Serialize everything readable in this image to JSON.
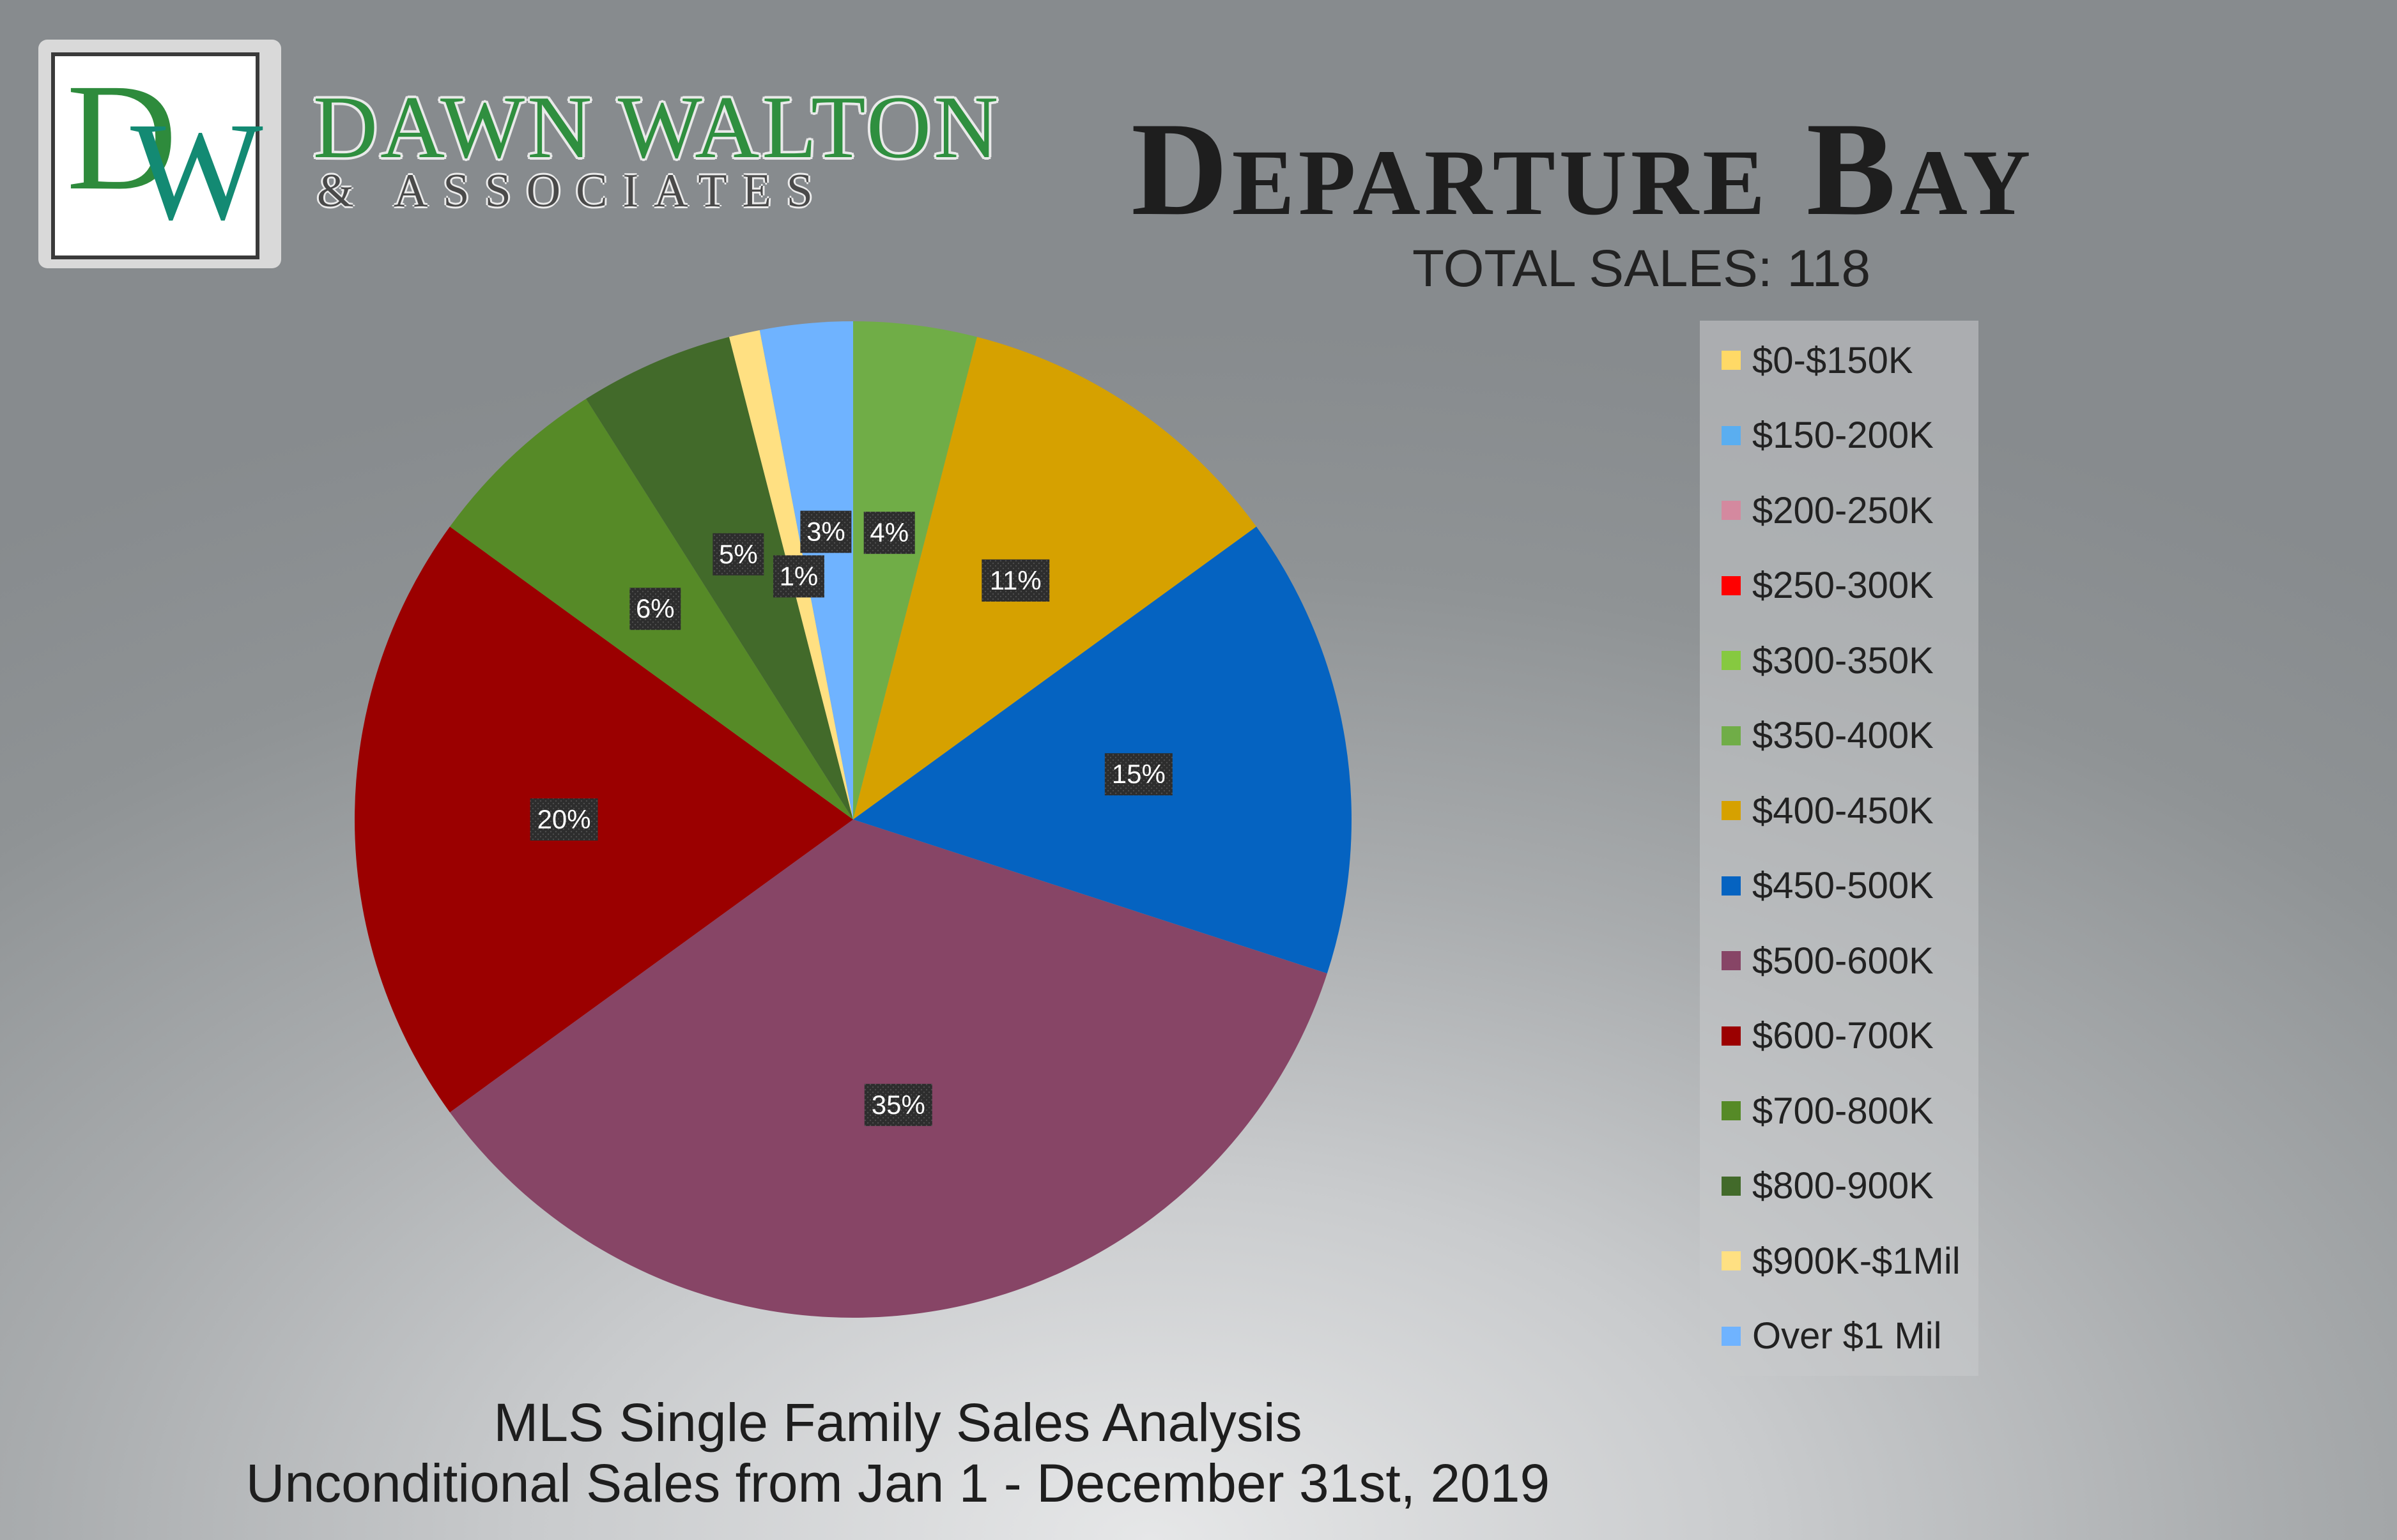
{
  "brand": {
    "logo_letters": [
      "D",
      "W"
    ],
    "name": "DAWN WALTON",
    "subtitle": "& ASSOCIATES",
    "colors": {
      "green": "#2e8b3c",
      "teal": "#138a73"
    }
  },
  "header": {
    "title": "Departure Bay",
    "total_sales": "TOTAL SALES: 118"
  },
  "footer": {
    "line1": "MLS Single Family Sales Analysis",
    "line2": "Unconditional Sales from Jan 1 - December 31st, 2019"
  },
  "chart_data": {
    "type": "pie",
    "legend_position": "right",
    "start_angle_deg": 0,
    "direction": "clockwise",
    "categories": [
      "$0-$150K",
      "$150-200K",
      "$200-250K",
      "$250-300K",
      "$300-350K",
      "$350-400K",
      "$400-450K",
      "$450-500K",
      "$500-600K",
      "$600-700K",
      "$700-800K",
      "$800-900K",
      "$900K-$1Mil",
      "Over $1 Mil"
    ],
    "values": [
      0,
      0,
      0,
      0,
      0,
      4,
      11,
      15,
      35,
      20,
      6,
      5,
      1,
      3
    ],
    "data_labels": [
      "",
      "",
      "",
      "",
      "",
      "4%",
      "11%",
      "15%",
      "35%",
      "20%",
      "6%",
      "5%",
      "1%",
      "3%"
    ],
    "colors": [
      "#ffd966",
      "#5aaef0",
      "#d4899f",
      "#ff0000",
      "#86c940",
      "#70ad47",
      "#d6a100",
      "#0563c1",
      "#874566",
      "#9b0000",
      "#568a27",
      "#426a2a",
      "#ffe082",
      "#6fb3ff"
    ]
  }
}
